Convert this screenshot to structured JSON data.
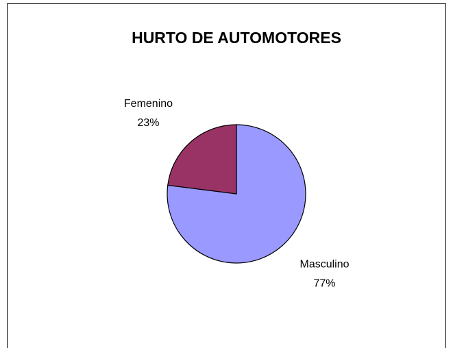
{
  "chart_data": {
    "type": "pie",
    "title": "HURTO DE AUTOMOTORES",
    "categories": [
      "Masculino",
      "Femenino"
    ],
    "values": [
      77,
      23
    ],
    "value_labels": [
      "77%",
      "23%"
    ],
    "colors": [
      "#9999ff",
      "#993366"
    ]
  }
}
